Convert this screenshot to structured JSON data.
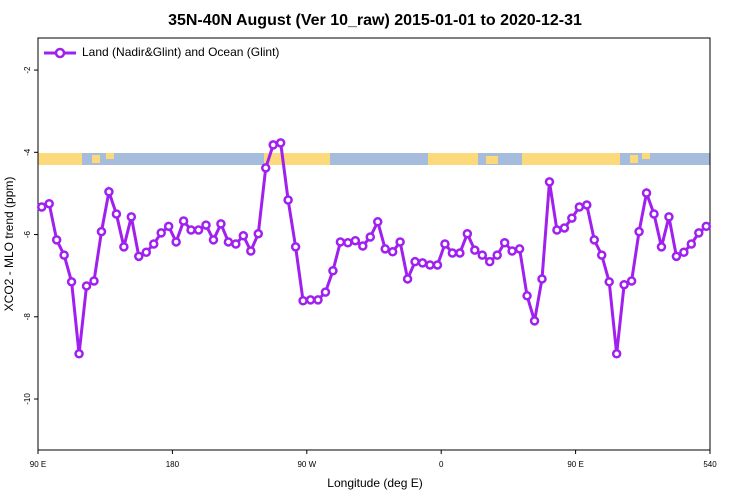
{
  "chart_data": {
    "type": "line",
    "title": "35N-40N August (Ver 10_raw)   2015-01-01 to 2020-12-31",
    "x_label": "Longitude (deg E)",
    "y_label": "XCO2 - MLO trend (ppm)",
    "x": [
      92.5,
      97.5,
      102.5,
      107.5,
      112.5,
      117.5,
      122.5,
      127.5,
      132.5,
      137.5,
      142.5,
      147.5,
      152.5,
      157.5,
      162.5,
      167.5,
      172.5,
      177.5,
      182.5,
      187.5,
      192.5,
      197.5,
      202.5,
      207.5,
      212.5,
      217.5,
      222.5,
      227.5,
      232.5,
      237.5,
      242.5,
      247.5,
      252.5,
      257.5,
      262.5,
      267.5,
      272.5,
      277.5,
      282.5,
      287.5,
      292.5,
      297.5,
      302.5,
      307.5,
      312.5,
      317.5,
      322.5,
      327.5,
      332.5,
      337.5,
      342.5,
      347.5,
      352.5,
      357.5,
      362.5,
      367.5,
      372.5,
      377.5,
      382.5,
      387.5,
      392.5,
      397.5,
      402.5,
      407.5,
      412.5,
      417.5,
      422.5,
      427.5,
      432.5,
      437.5,
      442.5,
      447.5,
      452.5,
      457.5,
      462.5,
      467.5,
      472.5,
      477.5,
      482.5,
      487.5,
      492.5,
      497.5,
      502.5,
      507.5,
      512.5,
      517.5,
      522.5,
      527.5,
      532.5,
      537.5
    ],
    "series": [
      {
        "name": "Land (Nadir&Glint) and Ocean (Glint)",
        "color": "#a020f0",
        "values": [
          -5.33,
          -5.25,
          -6.13,
          -6.5,
          -7.15,
          -8.9,
          -7.25,
          -7.13,
          -5.93,
          -4.96,
          -5.5,
          -6.3,
          -5.57,
          -6.53,
          -6.43,
          -6.23,
          -5.96,
          -5.8,
          -6.18,
          -5.67,
          -5.89,
          -5.89,
          -5.77,
          -6.13,
          -5.74,
          -6.18,
          -6.23,
          -6.03,
          -6.4,
          -5.98,
          -4.38,
          -3.82,
          -3.77,
          -5.16,
          -6.3,
          -7.61,
          -7.59,
          -7.59,
          -7.4,
          -6.88,
          -6.18,
          -6.2,
          -6.15,
          -6.28,
          -6.06,
          -5.69,
          -6.35,
          -6.42,
          -6.18,
          -7.08,
          -6.66,
          -6.69,
          -6.74,
          -6.74,
          -6.23,
          -6.45,
          -6.45,
          -5.98,
          -6.38,
          -6.5,
          -6.66,
          -6.5,
          -6.2,
          -6.4,
          -6.35,
          -7.49,
          -8.1,
          -7.08,
          -4.72,
          -5.89,
          -5.84,
          -5.6,
          -5.33,
          -5.28,
          -6.13,
          -6.5,
          -7.15,
          -8.9,
          -7.22,
          -7.13,
          -5.93,
          -4.99,
          -5.5,
          -6.3,
          -5.57,
          -6.53,
          -6.43,
          -6.23,
          -5.96,
          -5.8
        ]
      }
    ],
    "xlim": [
      90,
      540
    ],
    "xticks": [
      {
        "value": 90,
        "label": "90 E"
      },
      180,
      {
        "value": 270,
        "label": "90 W"
      },
      {
        "value": 360,
        "label": "0"
      },
      {
        "value": 450,
        "label": "90 E"
      },
      540
    ],
    "ylim": [
      -11.24,
      -1.22
    ],
    "yticks": [
      -2,
      -4,
      -6,
      -8,
      -10
    ],
    "legend": "top-left"
  }
}
